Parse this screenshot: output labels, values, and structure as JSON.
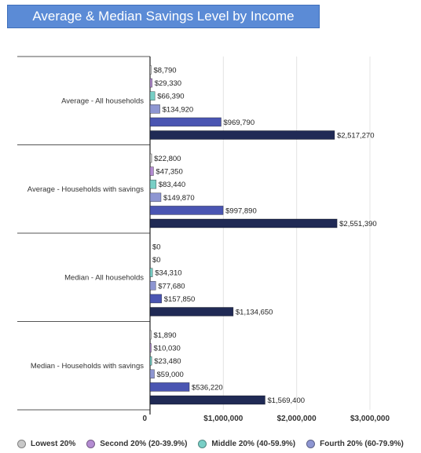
{
  "chart_data": {
    "type": "bar",
    "orientation": "horizontal",
    "title": "Average & Median Savings Level by Income",
    "categories": [
      "Average - All households",
      "Average - Households with savings",
      "Median - All households",
      "Median - Households with savings"
    ],
    "series": [
      {
        "name": "Lowest 20%",
        "color": "#c8c8c8",
        "values": [
          8790,
          22800,
          0,
          1890
        ],
        "labels": [
          "$8,790",
          "$22,800",
          "$0",
          "$1,890"
        ]
      },
      {
        "name": "Second 20% (20-39.9%)",
        "color": "#b48cd2",
        "values": [
          29330,
          47350,
          0,
          10030
        ],
        "labels": [
          "$29,330",
          "$47,350",
          "$0",
          "$10,030"
        ]
      },
      {
        "name": "Middle 20% (40-59.9%)",
        "color": "#78cfc6",
        "values": [
          66390,
          83440,
          34310,
          23480
        ],
        "labels": [
          "$66,390",
          "$83,440",
          "$34,310",
          "$23,480"
        ]
      },
      {
        "name": "Fourth 20% (60-79.9%)",
        "color": "#8e96d2",
        "values": [
          134920,
          149870,
          77680,
          59000
        ],
        "labels": [
          "$134,920",
          "$149,870",
          "$77,680",
          "$59,000"
        ]
      },
      {
        "color": "#4a55b2",
        "values": [
          969790,
          997890,
          157850,
          536220
        ],
        "labels": [
          "$969,790",
          "$997,890",
          "$157,850",
          "$536,220"
        ]
      },
      {
        "color": "#202a55",
        "values": [
          2517270,
          2551390,
          1134650,
          1569400
        ],
        "labels": [
          "$2,517,270",
          "$2,551,390",
          "$1,134,650",
          "$1,569,400"
        ]
      }
    ],
    "x_ticks": [
      0,
      1000000,
      2000000,
      3000000
    ],
    "x_tick_labels": [
      "0",
      "$1,000,000",
      "$2,000,000",
      "$3,000,000"
    ],
    "xlim": [
      0,
      3000000
    ],
    "grid": true,
    "legend_position": "bottom"
  }
}
